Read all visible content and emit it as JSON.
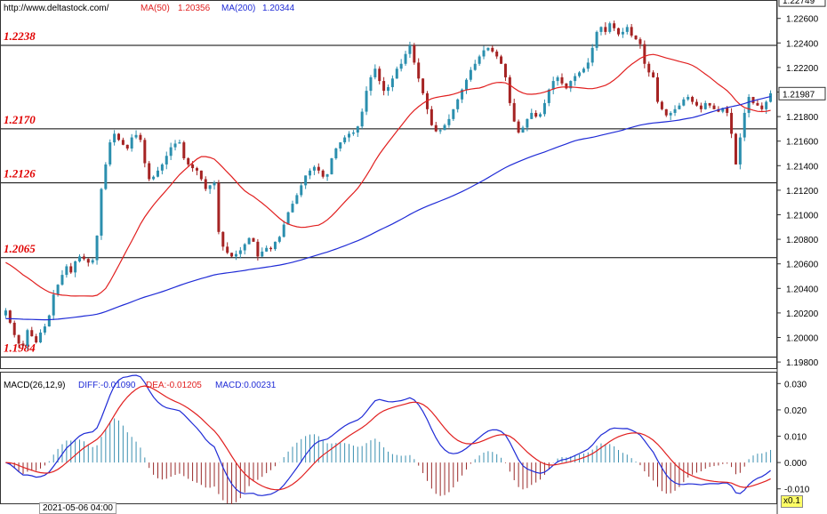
{
  "header": {
    "site": "http://www.deltastock.com/",
    "ma50_label": "MA(50)",
    "ma50_value": "1.20356",
    "ma200_label": "MA(200)",
    "ma200_value": "1.20344"
  },
  "macd_header": {
    "title": "MACD(26,12,9)",
    "diff": "DIFF:-0.01090",
    "dea": "DEA:-0.01205",
    "macd": "MACD:0.00231"
  },
  "date_label": "2021-05-06 04:00",
  "zoom_label": "x0.1",
  "colors": {
    "up": "#2b8fae",
    "down": "#a52323",
    "ma50": "#e11f1f",
    "ma200": "#1f2bd6",
    "level_text": "#e00000",
    "level_line": "#000000",
    "macd_pos": "#3a8fb0",
    "macd_neg": "#9a2a2a"
  },
  "chart_data": [
    {
      "type": "candlestick",
      "title": "",
      "price_axis_ticks": [
        "1.22600",
        "1.22400",
        "1.22200",
        "1.22000",
        "1.21800",
        "1.21600",
        "1.21400",
        "1.21200",
        "1.21000",
        "1.20800",
        "1.20600",
        "1.20400",
        "1.20200",
        "1.20000",
        "1.19800"
      ],
      "ylim": [
        1.1975,
        1.2275
      ],
      "current_price_top": "1.22749",
      "current_price": "1.21987",
      "horizontal_levels": [
        {
          "label": "1.2238",
          "value": 1.2238
        },
        {
          "label": "1.2170",
          "value": 1.217
        },
        {
          "label": "1.2126",
          "value": 1.2126
        },
        {
          "label": "1.2065",
          "value": 1.2065
        },
        {
          "label": "1.1984",
          "value": 1.1984
        }
      ],
      "closes": [
        1.2022,
        1.2012,
        1.2002,
        1.1995,
        1.1993,
        1.2006,
        1.2001,
        1.1996,
        1.2004,
        1.2009,
        1.2018,
        1.2035,
        1.2043,
        1.2051,
        1.2058,
        1.2053,
        1.2062,
        1.2066,
        1.2064,
        1.2061,
        1.2063,
        1.2083,
        1.2121,
        1.2141,
        1.2159,
        1.2166,
        1.2161,
        1.2157,
        1.2154,
        1.2163,
        1.2165,
        1.2161,
        1.2142,
        1.2129,
        1.2131,
        1.2136,
        1.2141,
        1.2148,
        1.2155,
        1.2158,
        1.2159,
        1.2146,
        1.2141,
        1.2138,
        1.2136,
        1.2129,
        1.2121,
        1.2124,
        1.2126,
        1.2086,
        1.2074,
        1.2069,
        1.2066,
        1.2068,
        1.2071,
        1.2076,
        1.2081,
        1.2078,
        1.2066,
        1.207,
        1.2073,
        1.2072,
        1.2078,
        1.2082,
        1.2092,
        1.2102,
        1.2109,
        1.2116,
        1.2124,
        1.2132,
        1.2136,
        1.2139,
        1.2136,
        1.2131,
        1.2133,
        1.2146,
        1.2154,
        1.2159,
        1.2163,
        1.2166,
        1.2167,
        1.2172,
        1.2184,
        1.2201,
        1.2212,
        1.2219,
        1.2209,
        1.2201,
        1.2204,
        1.2211,
        1.2219,
        1.2223,
        1.2231,
        1.2238,
        1.2224,
        1.2211,
        1.2199,
        1.2186,
        1.2173,
        1.2168,
        1.2169,
        1.2173,
        1.2178,
        1.2186,
        1.2194,
        1.2202,
        1.221,
        1.2218,
        1.2223,
        1.2229,
        1.2234,
        1.2236,
        1.2233,
        1.2229,
        1.2223,
        1.2212,
        1.2191,
        1.2176,
        1.2167,
        1.2171,
        1.2178,
        1.2183,
        1.218,
        1.2182,
        1.2191,
        1.2202,
        1.2209,
        1.2212,
        1.2207,
        1.2203,
        1.2209,
        1.2213,
        1.2216,
        1.2219,
        1.2224,
        1.2236,
        1.2249,
        1.2253,
        1.2249,
        1.2256,
        1.2252,
        1.2247,
        1.2249,
        1.2253,
        1.2246,
        1.2243,
        1.2239,
        1.2223,
        1.2216,
        1.2212,
        1.2192,
        1.2186,
        1.2181,
        1.2183,
        1.2186,
        1.2189,
        1.2194,
        1.2196,
        1.2192,
        1.2189,
        1.2186,
        1.2191,
        1.2189,
        1.2186,
        1.2184,
        1.2187,
        1.2183,
        1.2166,
        1.2141,
        1.2163,
        1.2183,
        1.2196,
        1.2191,
        1.2189,
        1.2186,
        1.2192,
        1.2199
      ]
    },
    {
      "type": "macd",
      "axis_ticks": [
        "0.030",
        "0.020",
        "0.010",
        "0.000",
        "-0.010"
      ],
      "ylim": [
        -0.0155,
        0.0345
      ]
    }
  ]
}
